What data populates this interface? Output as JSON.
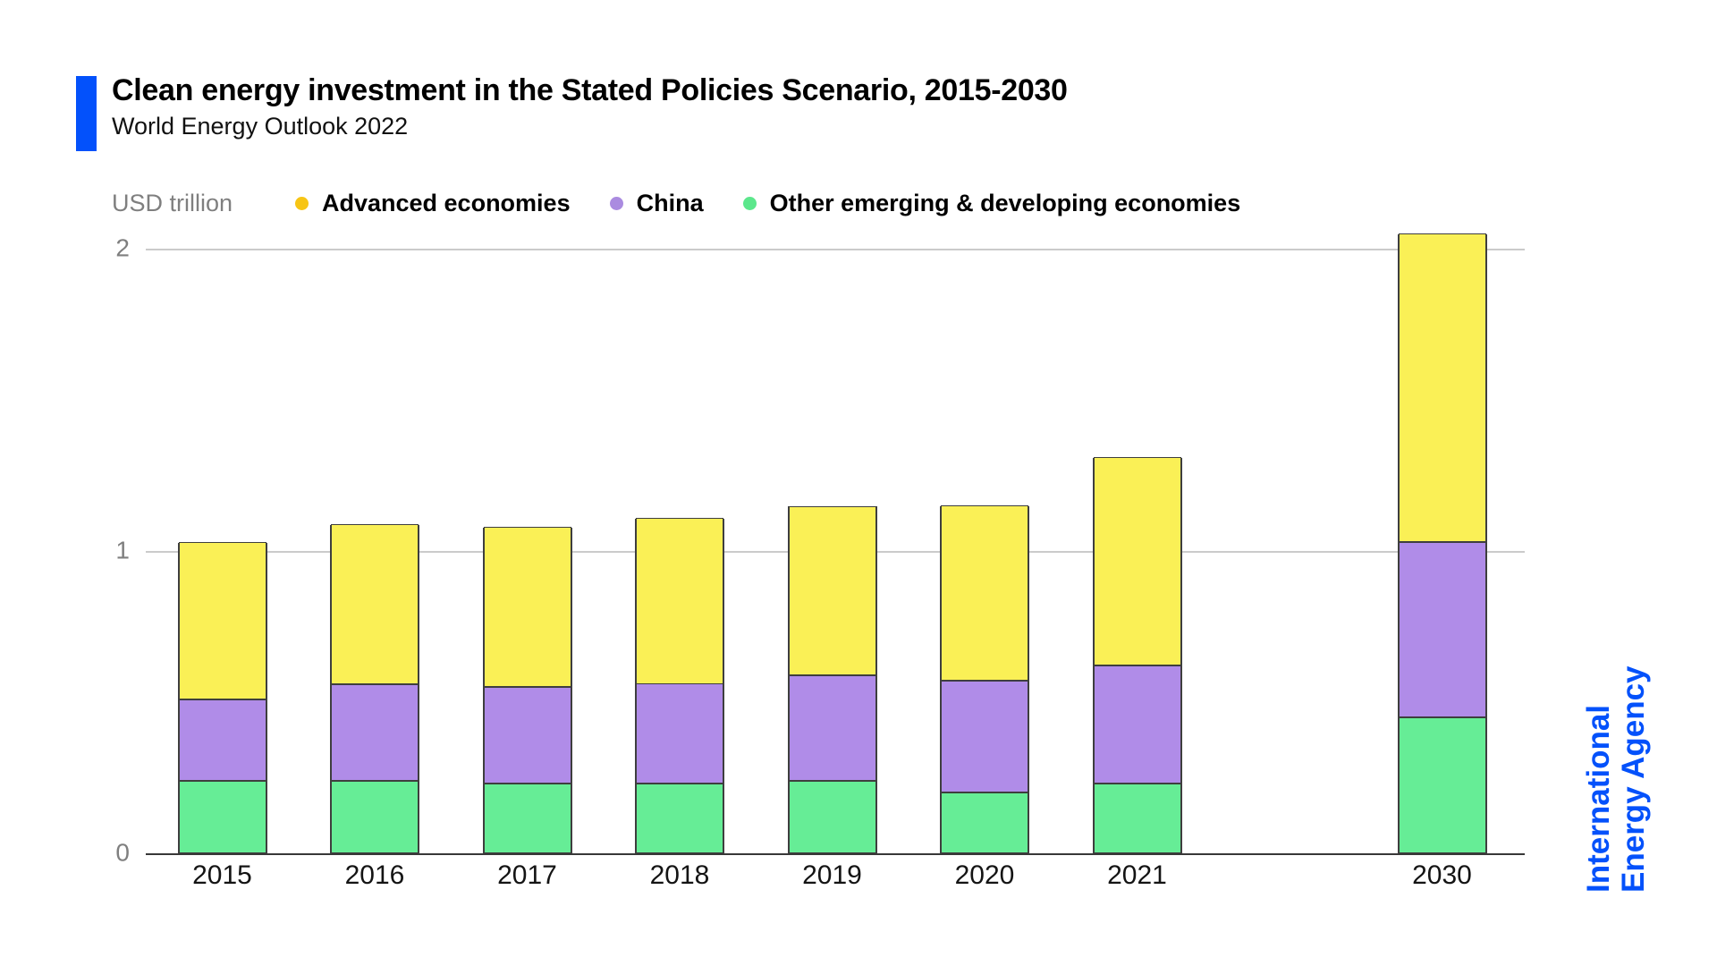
{
  "header": {
    "title": "Clean energy investment in the Stated Policies Scenario, 2015-2030",
    "subtitle": "World Energy Outlook 2022"
  },
  "iea": {
    "line1": "International",
    "line2": "Energy Agency"
  },
  "colors": {
    "accent_blue": "#0351fb",
    "gridline": "#cbcbcb",
    "baseline": "#383838",
    "bar_border": "#3e3e3e",
    "axis_text": "#7f7f7f"
  },
  "chart_data": {
    "type": "bar",
    "stacked": true,
    "title": "Clean energy investment in the Stated Policies Scenario, 2015-2030",
    "ylabel": "USD trillion",
    "xlabel": "",
    "categories": [
      "2015",
      "2016",
      "2017",
      "2018",
      "2019",
      "2020",
      "2021",
      "2030"
    ],
    "series": [
      {
        "name": "Other emerging & developing economies",
        "color": "#66ed96",
        "values": [
          0.24,
          0.24,
          0.23,
          0.23,
          0.24,
          0.2,
          0.23,
          0.45
        ]
      },
      {
        "name": "China",
        "color": "#b08ce8",
        "values": [
          0.27,
          0.32,
          0.32,
          0.33,
          0.35,
          0.37,
          0.39,
          0.58
        ]
      },
      {
        "name": "Advanced economies",
        "color": "#faf056",
        "values": [
          0.52,
          0.53,
          0.53,
          0.55,
          0.56,
          0.58,
          0.69,
          1.02
        ]
      }
    ],
    "totals": [
      1.03,
      1.09,
      1.08,
      1.11,
      1.15,
      1.15,
      1.31,
      2.05
    ],
    "legend": [
      {
        "label": "Advanced economies",
        "dot_color": "#f7c515"
      },
      {
        "label": "China",
        "dot_color": "#aa8be0"
      },
      {
        "label": "Other emerging & developing economies",
        "dot_color": "#5ce78c"
      }
    ],
    "yticks": [
      0,
      1,
      2
    ],
    "ylim": [
      0,
      2.07
    ],
    "grid": true,
    "legend_position": "top"
  }
}
